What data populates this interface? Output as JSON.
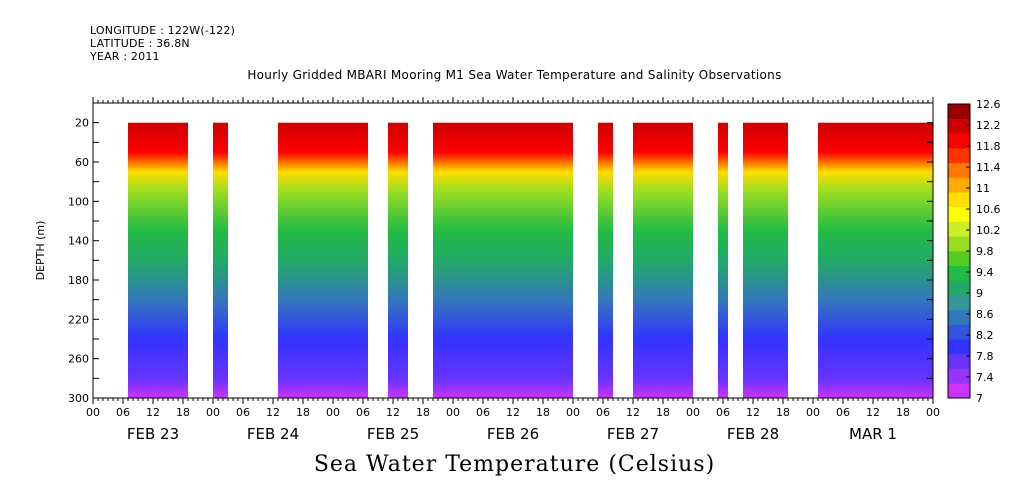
{
  "header": {
    "longitude": "LONGITUDE : 122W(-122)",
    "latitude": "LATITUDE : 36.8N",
    "year": "YEAR : 2011"
  },
  "chart_data": {
    "type": "heatmap",
    "title": "Hourly Gridded MBARI Mooring M1 Sea Water Temperature and Salinity Observations",
    "footer_title": "Sea Water Temperature (Celsius)",
    "ylabel": "DEPTH (m)",
    "ylim": [
      300,
      0
    ],
    "y_ticks": [
      20,
      60,
      100,
      140,
      180,
      220,
      260,
      300
    ],
    "x_range_hours": [
      0,
      168
    ],
    "x_hour_labels": [
      "00",
      "06",
      "12",
      "18",
      "00",
      "06",
      "12",
      "18",
      "00",
      "06",
      "12",
      "18",
      "00",
      "06",
      "12",
      "18",
      "00",
      "06",
      "12",
      "18",
      "00",
      "06",
      "12",
      "18",
      "00",
      "06",
      "12",
      "18",
      "00"
    ],
    "day_labels": [
      "FEB 23",
      "FEB 24",
      "FEB 25",
      "FEB 26",
      "FEB 27",
      "FEB 28",
      "MAR  1"
    ],
    "colorbar": {
      "levels": [
        7,
        7.4,
        7.8,
        8.2,
        8.6,
        9,
        9.4,
        9.8,
        10.2,
        10.6,
        11,
        11.4,
        11.8,
        12.2,
        12.6
      ],
      "labels": [
        "12.6",
        "12.2",
        "11.8",
        "11.4",
        "11",
        "10.6",
        "10.2",
        "9.8",
        "9.4",
        "9",
        "8.6",
        "8.2",
        "7.8",
        "7.4",
        "7"
      ],
      "colors": [
        "#cc33ff",
        "#9933ff",
        "#6633ff",
        "#3333ff",
        "#3355dd",
        "#3377bb",
        "#339999",
        "#22aa66",
        "#22bb44",
        "#55cc22",
        "#99dd22",
        "#ccee22",
        "#ffff00",
        "#ffdd00",
        "#ffaa00",
        "#ff7700",
        "#ff3300",
        "#ff0000",
        "#cc0000",
        "#990000"
      ]
    },
    "data_segments_hours": [
      [
        7,
        19
      ],
      [
        24,
        27
      ],
      [
        37,
        55
      ],
      [
        59,
        63
      ],
      [
        68,
        96
      ],
      [
        101,
        104
      ],
      [
        108,
        120
      ],
      [
        125,
        127
      ],
      [
        130,
        139
      ],
      [
        145,
        168
      ]
    ],
    "temperature_profile": [
      {
        "depth": 20,
        "temp": 12.3
      },
      {
        "depth": 50,
        "temp": 11.8
      },
      {
        "depth": 70,
        "temp": 10.8
      },
      {
        "depth": 90,
        "temp": 10.0
      },
      {
        "depth": 130,
        "temp": 9.4
      },
      {
        "depth": 160,
        "temp": 9.0
      },
      {
        "depth": 200,
        "temp": 8.5
      },
      {
        "depth": 240,
        "temp": 8.0
      },
      {
        "depth": 280,
        "temp": 7.6
      },
      {
        "depth": 300,
        "temp": 7.2
      }
    ]
  }
}
